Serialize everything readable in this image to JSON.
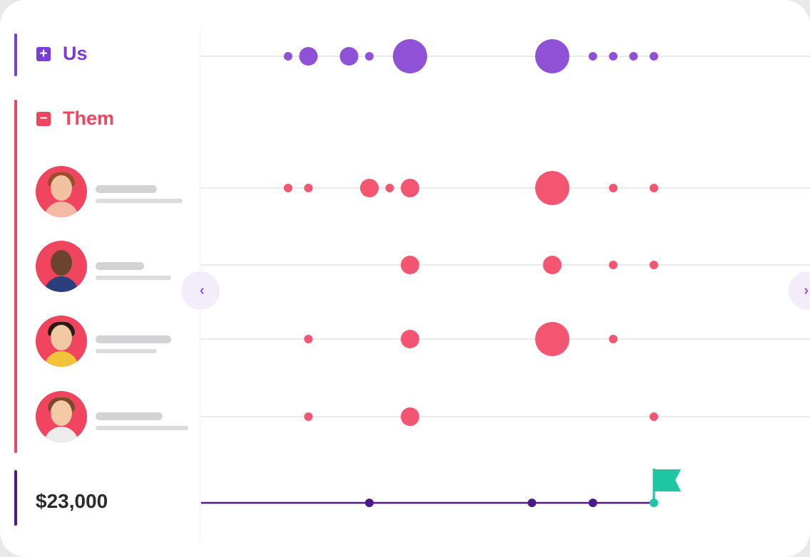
{
  "groups": {
    "us": {
      "label": "Us",
      "toggle_icon": "plus-square-icon",
      "color": "#7a3ed6"
    },
    "them": {
      "label": "Them",
      "toggle_icon": "minus-square-icon",
      "color": "#f0445f"
    }
  },
  "deal": {
    "amount": "$23,000",
    "line_color": "#4e1a8a",
    "flag_color": "#1fc6a3"
  },
  "navigation": {
    "prev_icon": "chevron-left-icon",
    "next_icon": "chevron-right-icon",
    "prev_glyph": "‹",
    "next_glyph": "›"
  },
  "timeline": {
    "columns": 26,
    "rows": [
      {
        "id": "us",
        "color": "#8f52d6",
        "dots": [
          {
            "col": 4,
            "size": "small"
          },
          {
            "col": 5,
            "size": "medium"
          },
          {
            "col": 7,
            "size": "medium"
          },
          {
            "col": 8,
            "size": "small"
          },
          {
            "col": 10,
            "size": "large"
          },
          {
            "col": 17,
            "size": "large"
          },
          {
            "col": 19,
            "size": "small"
          },
          {
            "col": 20,
            "size": "small"
          },
          {
            "col": 21,
            "size": "small"
          },
          {
            "col": 22,
            "size": "small"
          }
        ]
      },
      {
        "id": "them-1",
        "color": "#f45671",
        "dots": [
          {
            "col": 4,
            "size": "small"
          },
          {
            "col": 5,
            "size": "small"
          },
          {
            "col": 8,
            "size": "medium"
          },
          {
            "col": 9,
            "size": "small"
          },
          {
            "col": 10,
            "size": "medium"
          },
          {
            "col": 17,
            "size": "large"
          },
          {
            "col": 20,
            "size": "small"
          },
          {
            "col": 22,
            "size": "small"
          }
        ]
      },
      {
        "id": "them-2",
        "color": "#f45671",
        "dots": [
          {
            "col": 10,
            "size": "medium"
          },
          {
            "col": 17,
            "size": "medium"
          },
          {
            "col": 20,
            "size": "small"
          },
          {
            "col": 22,
            "size": "small"
          }
        ]
      },
      {
        "id": "them-3",
        "color": "#f45671",
        "dots": [
          {
            "col": 5,
            "size": "small"
          },
          {
            "col": 10,
            "size": "medium"
          },
          {
            "col": 17,
            "size": "large"
          },
          {
            "col": 20,
            "size": "small"
          }
        ]
      },
      {
        "id": "them-4",
        "color": "#f45671",
        "dots": [
          {
            "col": 5,
            "size": "small"
          },
          {
            "col": 10,
            "size": "medium"
          },
          {
            "col": 22,
            "size": "small"
          }
        ]
      }
    ],
    "deal_events": [
      {
        "col": 8
      },
      {
        "col": 16
      },
      {
        "col": 19
      }
    ],
    "deal_flag_col": 22
  }
}
